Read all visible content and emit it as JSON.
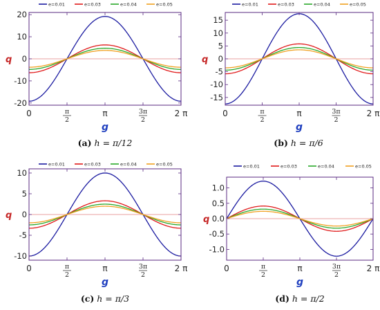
{
  "colors": {
    "frame": "#5a2a82",
    "axis_label": "#1f3fbf",
    "y_label": "#c62828",
    "zero_line": "#e9a0a0",
    "series": [
      "#1a1aa0",
      "#e01818",
      "#2aa82a",
      "#f0a020"
    ]
  },
  "chart_data": [
    {
      "type": "line",
      "xlabel": "g",
      "ylabel": "q",
      "caption_tag": "(a)",
      "caption_expr": "h = π/12",
      "xlim": [
        0,
        6.2832
      ],
      "ylim": [
        -21,
        21
      ],
      "x_ticks": [
        {
          "value": 0,
          "label": "0"
        },
        {
          "value": 1.5708,
          "label": "π/2"
        },
        {
          "value": 3.1416,
          "label": "π"
        },
        {
          "value": 4.7124,
          "label": "3π/2"
        },
        {
          "value": 6.2832,
          "label": "2 π"
        }
      ],
      "y_ticks": [
        -20,
        -10,
        0,
        10,
        20
      ],
      "legend": [
        "e=0.01",
        "e=0.03",
        "e=0.04",
        "e=0.05"
      ],
      "curve": "-A*cos(x)",
      "series": [
        {
          "name": "e=0.01",
          "amplitude": 19.2
        },
        {
          "name": "e=0.03",
          "amplitude": 6.3
        },
        {
          "name": "e=0.04",
          "amplitude": 4.8
        },
        {
          "name": "e=0.05",
          "amplitude": 3.8
        }
      ]
    },
    {
      "type": "line",
      "xlabel": "g",
      "ylabel": "q",
      "caption_tag": "(b)",
      "caption_expr": "h = π/6",
      "xlim": [
        0,
        6.2832
      ],
      "ylim": [
        -18,
        18
      ],
      "x_ticks": [
        {
          "value": 0,
          "label": "0"
        },
        {
          "value": 1.5708,
          "label": "π/2"
        },
        {
          "value": 3.1416,
          "label": "π"
        },
        {
          "value": 4.7124,
          "label": "3π/2"
        },
        {
          "value": 6.2832,
          "label": "2 π"
        }
      ],
      "y_ticks": [
        -15,
        -10,
        -5,
        0,
        5,
        10,
        15
      ],
      "legend": [
        "e=0.01",
        "e=0.03",
        "e=0.04",
        "e=0.05"
      ],
      "curve": "-A*cos(x)",
      "series": [
        {
          "name": "e=0.01",
          "amplitude": 17.5
        },
        {
          "name": "e=0.03",
          "amplitude": 5.8
        },
        {
          "name": "e=0.04",
          "amplitude": 4.4
        },
        {
          "name": "e=0.05",
          "amplitude": 3.5
        }
      ]
    },
    {
      "type": "line",
      "xlabel": "g",
      "ylabel": "q",
      "caption_tag": "(c)",
      "caption_expr": "h = π/3",
      "xlim": [
        0,
        6.2832
      ],
      "ylim": [
        -11,
        11
      ],
      "x_ticks": [
        {
          "value": 0,
          "label": "0"
        },
        {
          "value": 1.5708,
          "label": "π/2"
        },
        {
          "value": 3.1416,
          "label": "π"
        },
        {
          "value": 4.7124,
          "label": "3π/2"
        },
        {
          "value": 6.2832,
          "label": "2 π"
        }
      ],
      "y_ticks": [
        -10,
        -5,
        0,
        5,
        10
      ],
      "legend": [
        "e=0.01",
        "e=0.03",
        "e=0.04",
        "e=0.05"
      ],
      "curve": "-A*cos(x)",
      "series": [
        {
          "name": "e=0.01",
          "amplitude": 10.0
        },
        {
          "name": "e=0.03",
          "amplitude": 3.3
        },
        {
          "name": "e=0.04",
          "amplitude": 2.5
        },
        {
          "name": "e=0.05",
          "amplitude": 2.0
        }
      ]
    },
    {
      "type": "line",
      "xlabel": "g",
      "ylabel": "q",
      "caption_tag": "(d)",
      "caption_expr": "h = π/2",
      "xlim": [
        0,
        6.2832
      ],
      "ylim": [
        -1.35,
        1.35
      ],
      "x_ticks": [
        {
          "value": 0,
          "label": "0"
        },
        {
          "value": 1.5708,
          "label": "π/2"
        },
        {
          "value": 3.1416,
          "label": "π"
        },
        {
          "value": 4.7124,
          "label": "3π/2"
        },
        {
          "value": 6.2832,
          "label": "2 π"
        }
      ],
      "y_ticks": [
        -1.0,
        -0.5,
        0.0,
        0.5,
        1.0
      ],
      "legend": [
        "e=0.01",
        "e=0.03",
        "e=0.04",
        "e=0.05"
      ],
      "curve": "A*sin(x)",
      "series": [
        {
          "name": "e=0.01",
          "amplitude": 1.22
        },
        {
          "name": "e=0.03",
          "amplitude": 0.41
        },
        {
          "name": "e=0.04",
          "amplitude": 0.31
        },
        {
          "name": "e=0.05",
          "amplitude": 0.24
        }
      ]
    }
  ]
}
